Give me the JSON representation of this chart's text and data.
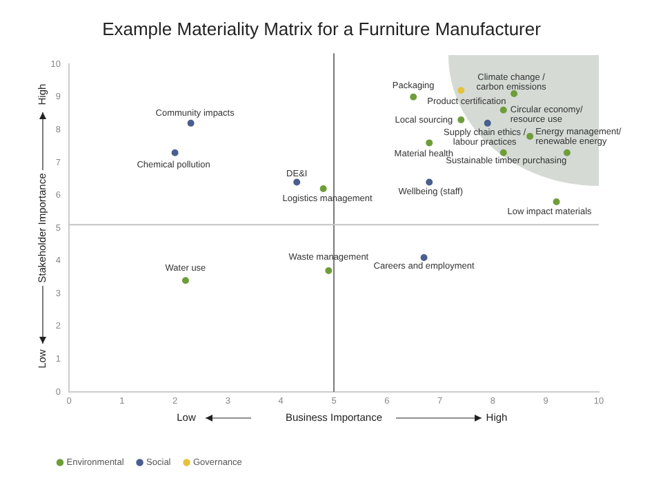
{
  "chart_data": {
    "type": "scatter",
    "title": "Example Materiality Matrix for a Furniture Manufacturer",
    "xlabel": "Business Importance",
    "ylabel": "Stakeholder Importance",
    "xlim": [
      0,
      10
    ],
    "ylim": [
      0,
      10
    ],
    "xticks": [
      0,
      1,
      2,
      3,
      4,
      5,
      6,
      7,
      8,
      9,
      10
    ],
    "yticks": [
      0,
      1,
      2,
      3,
      4,
      5,
      6,
      7,
      8,
      9,
      10
    ],
    "grid": false,
    "legend": "bottom left",
    "marker": "circle",
    "series": [
      {
        "name": "Environmental",
        "color": "#6e9e3a",
        "x": [
          2.2,
          4.8,
          4.9,
          6.5,
          7.4,
          6.8,
          8.4,
          8.2,
          8.7,
          8.2,
          9.4,
          9.2
        ],
        "values": [
          3.4,
          6.2,
          3.7,
          9.0,
          8.3,
          7.6,
          9.1,
          8.6,
          7.8,
          7.3,
          7.3,
          5.8
        ]
      },
      {
        "name": "Social",
        "color": "#4a5f8f",
        "x": [
          2.3,
          2.0,
          4.3,
          6.7,
          7.9,
          6.8
        ],
        "values": [
          8.2,
          7.3,
          6.4,
          4.1,
          8.2,
          6.4
        ]
      },
      {
        "name": "Governance",
        "color": "#e6c23c",
        "x": [
          7.4
        ],
        "values": [
          9.2
        ]
      }
    ],
    "ref_lines": [
      {
        "axis": "x",
        "value": 5,
        "color": "#7a7a7a"
      },
      {
        "axis": "y",
        "value": 5.1,
        "color": "#c4c4c4"
      }
    ],
    "annotations": [
      {
        "text": "Water use",
        "x": 2.2,
        "y": 3.4
      },
      {
        "text": "Logistics management",
        "x": 4.8,
        "y": 6.2
      },
      {
        "text": "Waste management",
        "x": 4.9,
        "y": 3.7
      },
      {
        "text": "Packaging",
        "x": 6.5,
        "y": 9.0
      },
      {
        "text": "Local sourcing",
        "x": 7.4,
        "y": 8.3
      },
      {
        "text": "Material health",
        "x": 6.8,
        "y": 7.6
      },
      {
        "text": "Climate change /\ncarbon emissions",
        "x": 8.4,
        "y": 9.1
      },
      {
        "text": "Circular economy/\nresource use",
        "x": 8.2,
        "y": 8.6
      },
      {
        "text": "Energy management/\nrenewable energy",
        "x": 8.7,
        "y": 7.8
      },
      {
        "text": "Sustainable timber purchasing",
        "x": 8.2,
        "y": 7.3
      },
      {
        "text": "Low impact materials",
        "x": 9.2,
        "y": 5.8
      },
      {
        "text": "Community impacts",
        "x": 2.3,
        "y": 8.2
      },
      {
        "text": "Chemical pollution",
        "x": 2.0,
        "y": 7.3
      },
      {
        "text": "DE&I",
        "x": 4.3,
        "y": 6.4
      },
      {
        "text": "Careers and employment",
        "x": 6.7,
        "y": 4.1
      },
      {
        "text": "Supply chain ethics /\nlabour practices",
        "x": 7.9,
        "y": 8.2
      },
      {
        "text": "Wellbeing (staff)",
        "x": 6.8,
        "y": 6.4
      },
      {
        "text": "Product certification",
        "x": 7.4,
        "y": 9.2
      },
      "Low",
      "High",
      "Low",
      "High"
    ]
  }
}
